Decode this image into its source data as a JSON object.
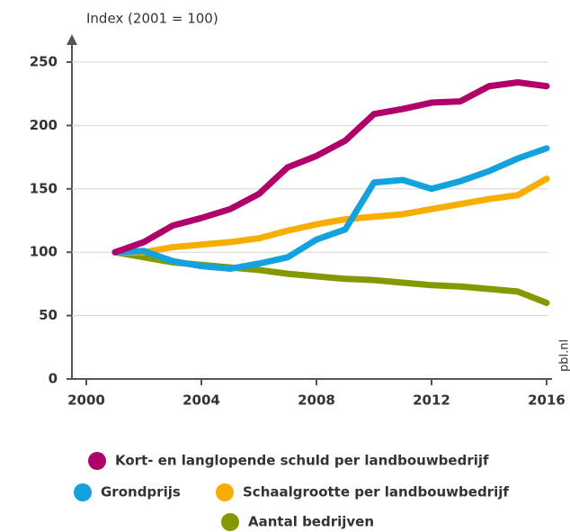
{
  "chart_data": {
    "type": "line",
    "y_axis_label": "Index (2001 = 100)",
    "source": "pbl.nl",
    "x": [
      2001,
      2002,
      2003,
      2004,
      2005,
      2006,
      2007,
      2008,
      2009,
      2010,
      2011,
      2012,
      2013,
      2014,
      2015,
      2016
    ],
    "series": [
      {
        "name": "Kort- en langlopende schuld per landbouwbedrijf",
        "color": "#b0006a",
        "values": [
          100,
          108,
          121,
          127,
          134,
          146,
          167,
          176,
          188,
          209,
          213,
          218,
          219,
          231,
          234,
          231
        ]
      },
      {
        "name": "Grondprijs",
        "color": "#14a2df",
        "values": [
          100,
          101,
          93,
          89,
          87,
          91,
          96,
          110,
          118,
          155,
          157,
          150,
          156,
          164,
          174,
          182
        ]
      },
      {
        "name": "Schaalgrootte per landbouwbedrijf",
        "color": "#f8ae00",
        "values": [
          100,
          100,
          104,
          106,
          108,
          111,
          117,
          122,
          126,
          128,
          130,
          134,
          138,
          142,
          145,
          158
        ]
      },
      {
        "name": "Aantal bedrijven",
        "color": "#869800",
        "values": [
          100,
          96,
          92,
          90,
          88,
          86,
          83,
          81,
          79,
          78,
          76,
          74,
          73,
          71,
          69,
          60
        ]
      }
    ],
    "xlim": [
      2000,
      2016
    ],
    "xticks": [
      2000,
      2004,
      2008,
      2012,
      2016
    ],
    "ylim": [
      0,
      250
    ],
    "yticks": [
      0,
      50,
      100,
      150,
      200,
      250
    ],
    "grid": true
  }
}
